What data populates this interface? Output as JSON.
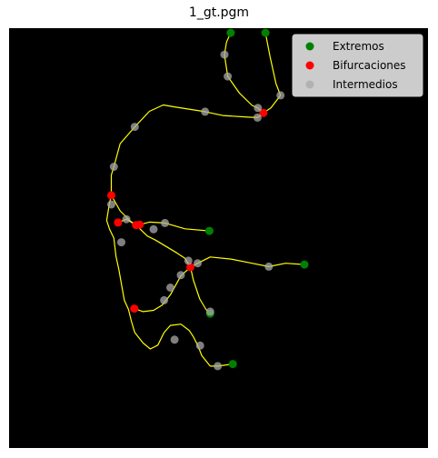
{
  "title": "1_gt.pgm",
  "chart_data": {
    "type": "scatter",
    "title": "1_gt.pgm",
    "background": "#000000",
    "grid": false,
    "legend_placement": "top-right",
    "xlim": [
      0,
      100
    ],
    "ylim": [
      0,
      100
    ],
    "y_inverted": true,
    "skeleton_color": "#ffff00",
    "skeleton_paths": [
      [
        [
          52.9,
          1.1
        ],
        [
          51.9,
          3.3
        ],
        [
          51.4,
          6.3
        ],
        [
          52.2,
          11.5
        ],
        [
          55.0,
          15.5
        ],
        [
          58.0,
          18.4
        ],
        [
          59.4,
          19.0
        ],
        [
          60.7,
          20.2
        ]
      ],
      [
        [
          61.2,
          1.1
        ],
        [
          62.3,
          6.8
        ],
        [
          63.7,
          13.2
        ],
        [
          64.8,
          16.0
        ],
        [
          62.5,
          19.0
        ],
        [
          60.7,
          20.2
        ],
        [
          59.3,
          21.3
        ],
        [
          57.0,
          21.2
        ],
        [
          51.0,
          20.8
        ],
        [
          46.8,
          19.9
        ],
        [
          39.8,
          18.8
        ],
        [
          36.8,
          18.3
        ],
        [
          33.5,
          19.8
        ],
        [
          30.0,
          23.5
        ],
        [
          26.5,
          27.5
        ],
        [
          25.0,
          33.0
        ],
        [
          24.4,
          35.0
        ],
        [
          24.4,
          39.8
        ],
        [
          23.9,
          42.0
        ],
        [
          23.3,
          45.8
        ],
        [
          24.0,
          47.9
        ],
        [
          25.0,
          50.0
        ],
        [
          25.5,
          54.3
        ],
        [
          26.2,
          57.5
        ],
        [
          27.5,
          64.8
        ],
        [
          28.5,
          67.0
        ],
        [
          29.2,
          69.8
        ],
        [
          30.0,
          72.5
        ],
        [
          32.0,
          75.0
        ],
        [
          33.7,
          76.4
        ],
        [
          35.5,
          75.5
        ],
        [
          37.0,
          72.5
        ],
        [
          38.5,
          70.8
        ],
        [
          41.0,
          70.5
        ],
        [
          43.0,
          72.0
        ],
        [
          44.0,
          73.5
        ],
        [
          45.0,
          75.5
        ],
        [
          46.0,
          78.0
        ],
        [
          48.0,
          80.5
        ],
        [
          49.8,
          80.5
        ],
        [
          53.4,
          80.0
        ]
      ],
      [
        [
          24.4,
          39.8
        ],
        [
          26.5,
          43.5
        ],
        [
          29.0,
          46.0
        ],
        [
          30.0,
          46.6
        ],
        [
          31.2,
          46.8
        ],
        [
          33.5,
          46.2
        ],
        [
          37.2,
          46.4
        ],
        [
          42.0,
          47.8
        ],
        [
          47.8,
          48.3
        ]
      ],
      [
        [
          26.0,
          46.3
        ],
        [
          28.0,
          45.5
        ],
        [
          30.3,
          46.9
        ],
        [
          33.0,
          49.5
        ],
        [
          35.0,
          50.5
        ],
        [
          40.0,
          53.5
        ],
        [
          42.0,
          54.8
        ],
        [
          43.3,
          56.9
        ],
        [
          45.0,
          56.0
        ],
        [
          48.0,
          54.5
        ],
        [
          53.0,
          55.0
        ],
        [
          58.0,
          56.0
        ],
        [
          62.0,
          56.8
        ],
        [
          66.0,
          56.0
        ],
        [
          70.5,
          56.3
        ]
      ],
      [
        [
          43.3,
          56.9
        ],
        [
          41.0,
          59.0
        ],
        [
          38.5,
          63.5
        ],
        [
          36.5,
          66.0
        ],
        [
          34.5,
          67.2
        ],
        [
          32.0,
          67.5
        ],
        [
          29.9,
          66.8
        ]
      ],
      [
        [
          43.3,
          56.9
        ],
        [
          44.0,
          60.0
        ],
        [
          45.5,
          64.5
        ],
        [
          47.0,
          67.0
        ],
        [
          48.0,
          68.0
        ]
      ]
    ],
    "series": [
      {
        "name": "Extremos",
        "color": "#008000",
        "points": [
          [
            52.9,
            1.1
          ],
          [
            61.2,
            1.1
          ],
          [
            47.8,
            48.3
          ],
          [
            70.5,
            56.3
          ],
          [
            48.0,
            68.0
          ],
          [
            53.4,
            80.0
          ]
        ]
      },
      {
        "name": "Bifurcaciones",
        "color": "#ff0000",
        "points": [
          [
            60.7,
            20.2
          ],
          [
            24.4,
            39.8
          ],
          [
            26.0,
            46.3
          ],
          [
            30.3,
            46.9
          ],
          [
            31.2,
            46.8
          ],
          [
            43.3,
            56.9
          ],
          [
            29.9,
            66.8
          ]
        ]
      },
      {
        "name": "Intermedios",
        "color": "#a9a9a9",
        "points": [
          [
            51.4,
            6.3
          ],
          [
            52.2,
            11.5
          ],
          [
            59.4,
            19.0
          ],
          [
            64.8,
            16.0
          ],
          [
            59.3,
            21.3
          ],
          [
            46.8,
            19.9
          ],
          [
            30.0,
            23.5
          ],
          [
            25.0,
            33.0
          ],
          [
            24.4,
            42.0
          ],
          [
            28.0,
            45.5
          ],
          [
            37.2,
            46.4
          ],
          [
            34.5,
            47.9
          ],
          [
            42.8,
            55.4
          ],
          [
            45.0,
            56.0
          ],
          [
            62.0,
            56.8
          ],
          [
            41.0,
            58.8
          ],
          [
            38.5,
            61.8
          ],
          [
            37.0,
            64.8
          ],
          [
            48.0,
            67.5
          ],
          [
            26.8,
            51.0
          ],
          [
            39.5,
            74.2
          ],
          [
            45.6,
            75.6
          ],
          [
            49.8,
            80.5
          ]
        ]
      }
    ]
  }
}
